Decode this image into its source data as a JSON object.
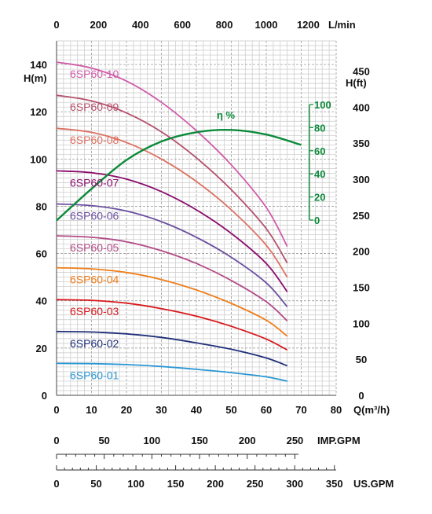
{
  "chart_data": {
    "type": "line",
    "x_axis": {
      "label": "Q(m³/h)",
      "range": [
        0,
        80
      ],
      "ticks": [
        "0",
        "10",
        "20",
        "30",
        "40",
        "50",
        "60",
        "70",
        "80"
      ]
    },
    "y_axis_left": {
      "label": "H(m)",
      "range": [
        0,
        140
      ],
      "ticks": [
        "0",
        "20",
        "40",
        "60",
        "80",
        "100",
        "120",
        "140"
      ]
    },
    "y_axis_right": {
      "label": "H(ft)",
      "ticks": [
        "0",
        "50",
        "100",
        "150",
        "200",
        "250",
        "300",
        "350",
        "400",
        "450"
      ]
    },
    "top_axis": {
      "label": "L/min",
      "ticks": [
        "0",
        "200",
        "400",
        "600",
        "800",
        "1000",
        "1200"
      ]
    },
    "efficiency_axis": {
      "label": "η %",
      "range": [
        0,
        100
      ],
      "ticks": [
        "0",
        "20",
        "40",
        "60",
        "80",
        "100"
      ]
    },
    "imp_gpm_axis": {
      "label": "IMP.GPM",
      "ticks": [
        "0",
        "50",
        "100",
        "150",
        "200",
        "250"
      ]
    },
    "us_gpm_axis": {
      "label": "US.GPM",
      "ticks": [
        "0",
        "50",
        "100",
        "150",
        "200",
        "250",
        "300",
        "350"
      ]
    },
    "grid": true,
    "x": [
      0,
      10,
      20,
      30,
      40,
      50,
      60,
      66
    ],
    "series": [
      {
        "name": "6SP60-01",
        "color": "#2a97d4",
        "values": [
          13.5,
          13.4,
          13.0,
          12.2,
          11.0,
          9.6,
          7.8,
          6.0
        ]
      },
      {
        "name": "6SP60-02",
        "color": "#1f2f7a",
        "values": [
          27.0,
          26.8,
          26.0,
          24.5,
          22.2,
          19.5,
          15.8,
          12.5
        ]
      },
      {
        "name": "6SP60-03",
        "color": "#d8181c",
        "values": [
          40.5,
          40.2,
          39.0,
          36.7,
          33.5,
          29.2,
          23.8,
          19.2
        ]
      },
      {
        "name": "6SP60-04",
        "color": "#ef7d1a",
        "values": [
          54.0,
          53.5,
          52.0,
          49.0,
          44.6,
          38.9,
          31.8,
          25.0
        ]
      },
      {
        "name": "6SP60-05",
        "color": "#b24a87",
        "values": [
          67.5,
          66.9,
          65.0,
          61.2,
          55.8,
          48.6,
          39.6,
          31.5
        ]
      },
      {
        "name": "6SP60-06",
        "color": "#6a4fa0",
        "values": [
          81.0,
          80.3,
          78.0,
          73.5,
          66.9,
          58.4,
          47.6,
          37.5
        ]
      },
      {
        "name": "6SP60-07",
        "color": "#8a0c6c",
        "values": [
          95.0,
          94.2,
          91.5,
          86.2,
          78.5,
          68.5,
          55.8,
          43.8
        ]
      },
      {
        "name": "6SP60-08",
        "color": "#dd7062",
        "values": [
          113.0,
          111.3,
          107.0,
          100.0,
          90.5,
          78.5,
          63.5,
          50.0
        ]
      },
      {
        "name": "6SP60-09",
        "color": "#b5506c",
        "values": [
          127.0,
          124.6,
          119.5,
          111.5,
          100.5,
          87.0,
          70.5,
          56.0
        ]
      },
      {
        "name": "6SP60-10",
        "color": "#d05ba8",
        "values": [
          141.0,
          138.5,
          133.0,
          124.0,
          112.0,
          97.5,
          79.5,
          63.0
        ]
      }
    ],
    "efficiency": {
      "name": "η %",
      "color": "#0b8a3a",
      "x": [
        0,
        10,
        20,
        30,
        40,
        50,
        60,
        70
      ],
      "values": [
        0,
        27,
        52,
        68,
        76,
        78,
        74,
        65
      ]
    }
  }
}
